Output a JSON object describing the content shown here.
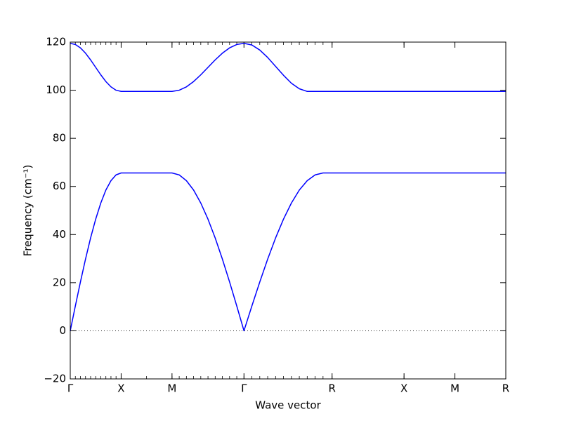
{
  "chart_data": {
    "type": "line",
    "xlabel": "Wave vector",
    "ylabel": "Frequency (cm⁻¹)",
    "x": [
      0,
      0.05,
      0.1,
      0.15,
      0.2,
      0.25,
      0.3,
      0.35,
      0.4,
      0.45,
      0.5,
      0.75,
      1.0,
      1.0707,
      1.1414,
      1.2121,
      1.2828,
      1.3536,
      1.4243,
      1.495,
      1.5657,
      1.6364,
      1.7071,
      1.7848,
      1.8625,
      1.9402,
      2.0179,
      2.0956,
      2.1733,
      2.251,
      2.3287,
      2.4064,
      2.4841,
      2.5731,
      3.2802,
      3.7802,
      4.2802
    ],
    "series": [
      {
        "color": "#0000ff",
        "values": [
          0,
          10.3,
          20.3,
          29.8,
          38.6,
          46.4,
          53.1,
          58.5,
          62.4,
          64.8,
          65.6,
          65.6,
          65.6,
          64.8,
          62.4,
          58.5,
          53.1,
          46.4,
          38.6,
          29.8,
          20.3,
          10.3,
          0,
          10.3,
          20.3,
          29.8,
          38.6,
          46.4,
          53.1,
          58.5,
          62.4,
          64.8,
          65.6,
          65.6,
          65.6,
          65.6,
          65.6
        ]
      },
      {
        "color": "#0000ff",
        "values": [
          119.5,
          119.0,
          117.6,
          115.4,
          112.6,
          109.5,
          106.4,
          103.6,
          101.4,
          100.0,
          99.5,
          99.5,
          99.5,
          100.0,
          101.4,
          103.6,
          106.4,
          109.5,
          112.6,
          115.4,
          117.6,
          119.0,
          119.5,
          118.8,
          116.7,
          113.6,
          109.9,
          106.2,
          102.9,
          100.6,
          99.5,
          99.5,
          99.5,
          99.5,
          99.5,
          99.5,
          99.5
        ]
      }
    ],
    "xlim": [
      0,
      4.2802
    ],
    "xticks": [
      {
        "value": 0,
        "label": "Γ"
      },
      {
        "value": 0.5,
        "label": "X"
      },
      {
        "value": 1.0,
        "label": "M"
      },
      {
        "value": 1.7071,
        "label": "Γ"
      },
      {
        "value": 2.5731,
        "label": "R"
      },
      {
        "value": 3.2802,
        "label": "X"
      },
      {
        "value": 3.7802,
        "label": "M"
      },
      {
        "value": 4.2802,
        "label": "R"
      }
    ],
    "ylim": [
      -20,
      120
    ],
    "yticks": [
      {
        "value": -20,
        "label": "−20"
      },
      0,
      20,
      40,
      60,
      80,
      100,
      120
    ],
    "hline": 0,
    "grid": false
  }
}
